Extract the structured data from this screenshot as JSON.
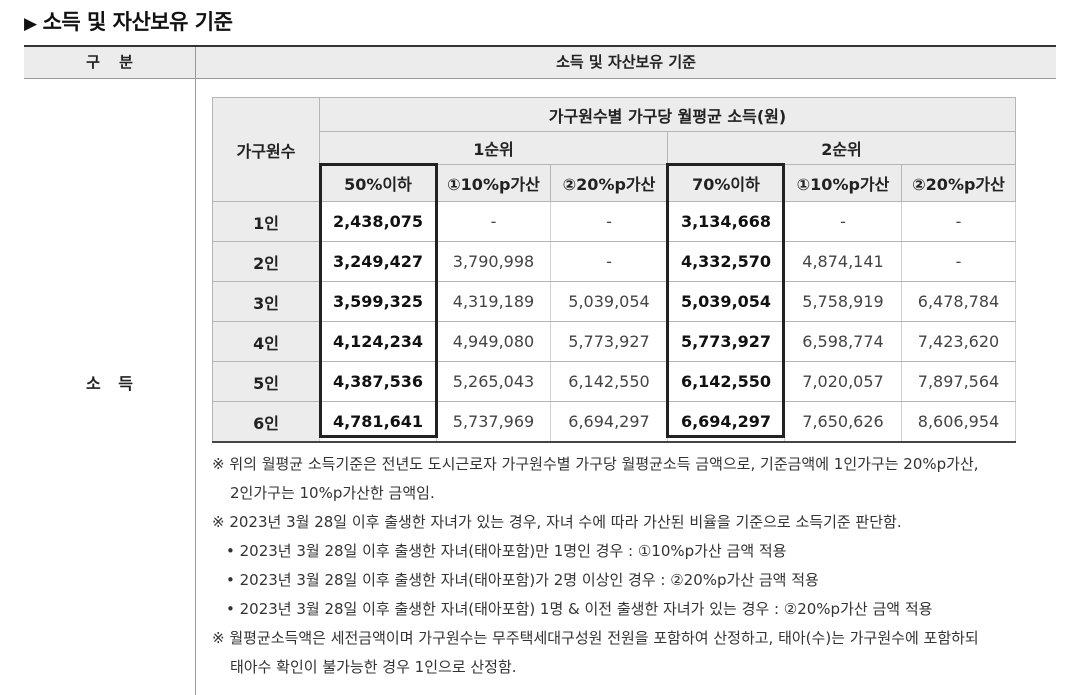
{
  "title": "소득 및 자산보유 기준",
  "outer": {
    "header_left": "구 분",
    "header_right": "소득 및 자산보유 기준",
    "side_label": "소 득"
  },
  "table": {
    "col1_header": "가구원수",
    "group_header": "가구원수별 가구당 월평균 소득(원)",
    "rank1": "1순위",
    "rank2": "2순위",
    "subheaders": [
      "50%이하",
      "①10%p가산",
      "②20%p가산",
      "70%이하",
      "①10%p가산",
      "②20%p가산"
    ],
    "rows": [
      {
        "label": "1인",
        "cells": [
          "2,438,075",
          "-",
          "-",
          "3,134,668",
          "-",
          "-"
        ]
      },
      {
        "label": "2인",
        "cells": [
          "3,249,427",
          "3,790,998",
          "-",
          "4,332,570",
          "4,874,141",
          "-"
        ]
      },
      {
        "label": "3인",
        "cells": [
          "3,599,325",
          "4,319,189",
          "5,039,054",
          "5,039,054",
          "5,758,919",
          "6,478,784"
        ]
      },
      {
        "label": "4인",
        "cells": [
          "4,124,234",
          "4,949,080",
          "5,773,927",
          "5,773,927",
          "6,598,774",
          "7,423,620"
        ]
      },
      {
        "label": "5인",
        "cells": [
          "4,387,536",
          "5,265,043",
          "6,142,550",
          "6,142,550",
          "7,020,057",
          "7,897,564"
        ]
      },
      {
        "label": "6인",
        "cells": [
          "4,781,641",
          "5,737,969",
          "6,694,297",
          "6,694,297",
          "7,650,626",
          "8,606,954"
        ]
      }
    ]
  },
  "notes": {
    "n1_line1": "※ 위의 월평균 소득기준은 전년도 도시근로자 가구원수별 가구당 월평균소득 금액으로, 기준금액에 1인가구는 20%p가산,",
    "n1_line2": "2인가구는 10%p가산한 금액임.",
    "n2": "※ 2023년 3월 28일 이후 출생한 자녀가 있는 경우, 자녀 수에 따라 가산된 비율을 기준으로 소득기준 판단함.",
    "b1": "• 2023년 3월 28일 이후 출생한 자녀(태아포함)만 1명인 경우 : ①10%p가산 금액 적용",
    "b2": "• 2023년 3월 28일 이후 출생한 자녀(태아포함)가 2명 이상인 경우 : ②20%p가산 금액 적용",
    "b3": "• 2023년 3월 28일 이후 출생한 자녀(태아포함) 1명 & 이전 출생한 자녀가 있는 경우 : ②20%p가산 금액 적용",
    "n3_line1": "※ 월평균소득액은 세전금액이며 가구원수는 무주택세대구성원 전원을 포함하여 산정하고, 태아(수)는 가구원수에 포함하되",
    "n3_line2": "태아수 확인이 불가능한 경우 1인으로 산정함."
  }
}
